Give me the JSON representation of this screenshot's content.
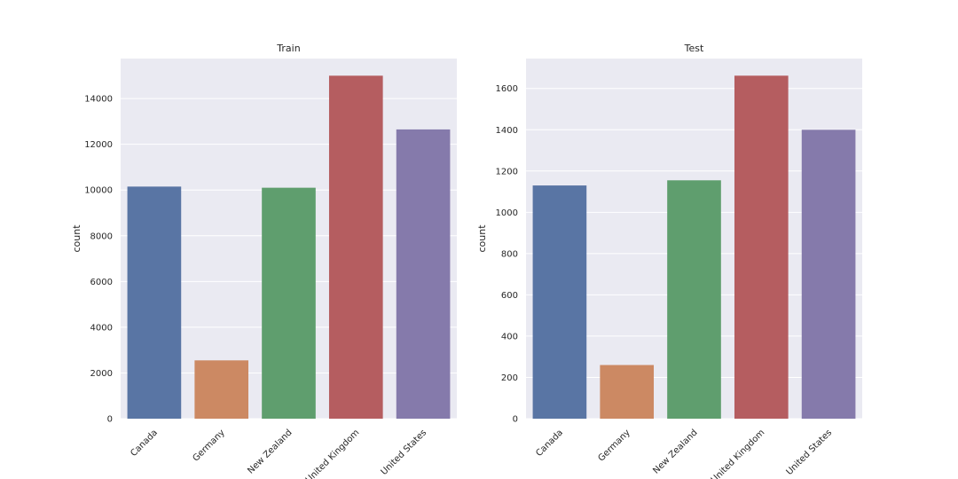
{
  "chart_data": [
    {
      "type": "bar",
      "title": "Train",
      "xlabel": "",
      "ylabel": "count",
      "categories": [
        "Canada",
        "Germany",
        "New Zealand",
        "United Kingdom",
        "United States"
      ],
      "values": [
        10150,
        2550,
        10100,
        15000,
        12650
      ],
      "ylim": [
        0,
        15750
      ],
      "yticks": [
        0,
        2000,
        4000,
        6000,
        8000,
        10000,
        12000,
        14000
      ],
      "grid": true,
      "colors": [
        "#5975a4",
        "#cc8963",
        "#5f9e6e",
        "#b55d60",
        "#857aab"
      ]
    },
    {
      "type": "bar",
      "title": "Test",
      "xlabel": "",
      "ylabel": "count",
      "categories": [
        "Canada",
        "Germany",
        "New Zealand",
        "United Kingdom",
        "United States"
      ],
      "values": [
        1130,
        260,
        1155,
        1662,
        1400
      ],
      "ylim": [
        0,
        1745
      ],
      "yticks": [
        0,
        200,
        400,
        600,
        800,
        1000,
        1200,
        1400,
        1600
      ],
      "grid": true,
      "colors": [
        "#5975a4",
        "#cc8963",
        "#5f9e6e",
        "#b55d60",
        "#857aab"
      ]
    }
  ]
}
